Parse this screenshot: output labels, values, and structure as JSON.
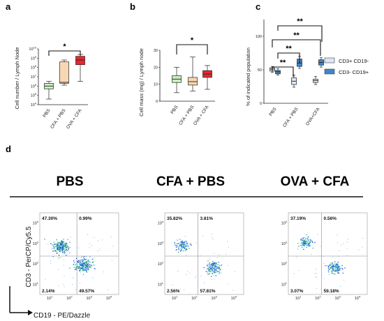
{
  "panel_labels": [
    "a",
    "b",
    "c",
    "d"
  ],
  "chart_data": [
    {
      "panel": "a",
      "type": "box",
      "ylabel": "Cell number / Lymph Node",
      "yscale": "log",
      "ytick_labels": [
        "10^4",
        "10^5",
        "10^6",
        "10^7",
        "10^8",
        "10^9",
        "10^10"
      ],
      "categories": [
        "PBS",
        "CFA + PBS",
        "OVA + CFA"
      ],
      "colors": [
        "#c9efc0",
        "#f7d7b3",
        "#e5292e"
      ],
      "boxes": [
        {
          "min": 4.6,
          "q1": 5.7,
          "median": 6.0,
          "q3": 6.3,
          "max": 6.5
        },
        {
          "min": 6.1,
          "q1": 6.3,
          "median": 6.4,
          "q3": 8.6,
          "max": 8.8
        },
        {
          "min": 6.5,
          "q1": 8.3,
          "median": 8.8,
          "q3": 9.2,
          "max": 9.4
        }
      ],
      "significance": [
        {
          "from": "PBS",
          "to": "OVA + CFA",
          "label": "*"
        }
      ]
    },
    {
      "panel": "b",
      "type": "box",
      "ylabel": "Cell mass (mg) / Lymph node",
      "ylim": [
        0,
        30
      ],
      "yticks": [
        "0",
        "10",
        "20",
        "30"
      ],
      "categories": [
        "PBS",
        "CFA + PBS",
        "OVA + CFA"
      ],
      "colors": [
        "#c9efc0",
        "#f7d7b3",
        "#e5292e"
      ],
      "boxes": [
        {
          "min": 5,
          "q1": 11,
          "median": 13,
          "q3": 15,
          "max": 20
        },
        {
          "min": 6,
          "q1": 9.5,
          "median": 11.5,
          "q3": 14,
          "max": 26
        },
        {
          "min": 7,
          "q1": 14,
          "median": 16,
          "q3": 18,
          "max": 21
        }
      ],
      "significance": [
        {
          "from": "PBS",
          "to": "OVA + CFA",
          "label": "*"
        }
      ]
    },
    {
      "panel": "c",
      "type": "box",
      "ylabel": "% of indicated population",
      "ylim": [
        0,
        125
      ],
      "yticks": [
        "0",
        "50",
        "100"
      ],
      "categories": [
        "PBS",
        "CFA + PBS",
        "OVA+CFA"
      ],
      "series": [
        {
          "name": "CD3+ CD19-",
          "color": "#dbe6f4",
          "boxes": [
            {
              "min": 46,
              "q1": 48,
              "median": 51,
              "q3": 53,
              "max": 55
            },
            {
              "min": 24,
              "q1": 28,
              "median": 33,
              "q3": 38,
              "max": 42
            },
            {
              "min": 28,
              "q1": 31,
              "median": 34,
              "q3": 36,
              "max": 40
            }
          ]
        },
        {
          "name": "CD3- CD19+",
          "color": "#3d87cc",
          "boxes": [
            {
              "min": 42,
              "q1": 44,
              "median": 47,
              "q3": 49,
              "max": 52
            },
            {
              "min": 52,
              "q1": 55,
              "median": 60,
              "q3": 66,
              "max": 70
            },
            {
              "min": 54,
              "q1": 57,
              "median": 61,
              "q3": 65,
              "max": 68
            }
          ]
        }
      ],
      "significance": [
        "**",
        "**",
        "**",
        "**"
      ]
    }
  ],
  "flow": {
    "headers": [
      "PBS",
      "CFA + PBS",
      "OVA + CFA"
    ],
    "plots": [
      {
        "q": [
          "47.30%",
          "0.99%",
          "2.14%",
          "49.57%"
        ]
      },
      {
        "q": [
          "35.82%",
          "3.81%",
          "2.56%",
          "57.81%"
        ]
      },
      {
        "q": [
          "37.19%",
          "0.56%",
          "3.07%",
          "59.18%"
        ]
      }
    ],
    "ytick_labels": [
      "10^1",
      "10^2",
      "10^3",
      "10^4"
    ],
    "xtick_labels": [
      "10^1",
      "10^2",
      "10^3",
      "10^4"
    ],
    "y_axis_label": "CD3 - PerCP/Cy5.5",
    "x_axis_label": "CD19 - PE/Dazzle"
  }
}
